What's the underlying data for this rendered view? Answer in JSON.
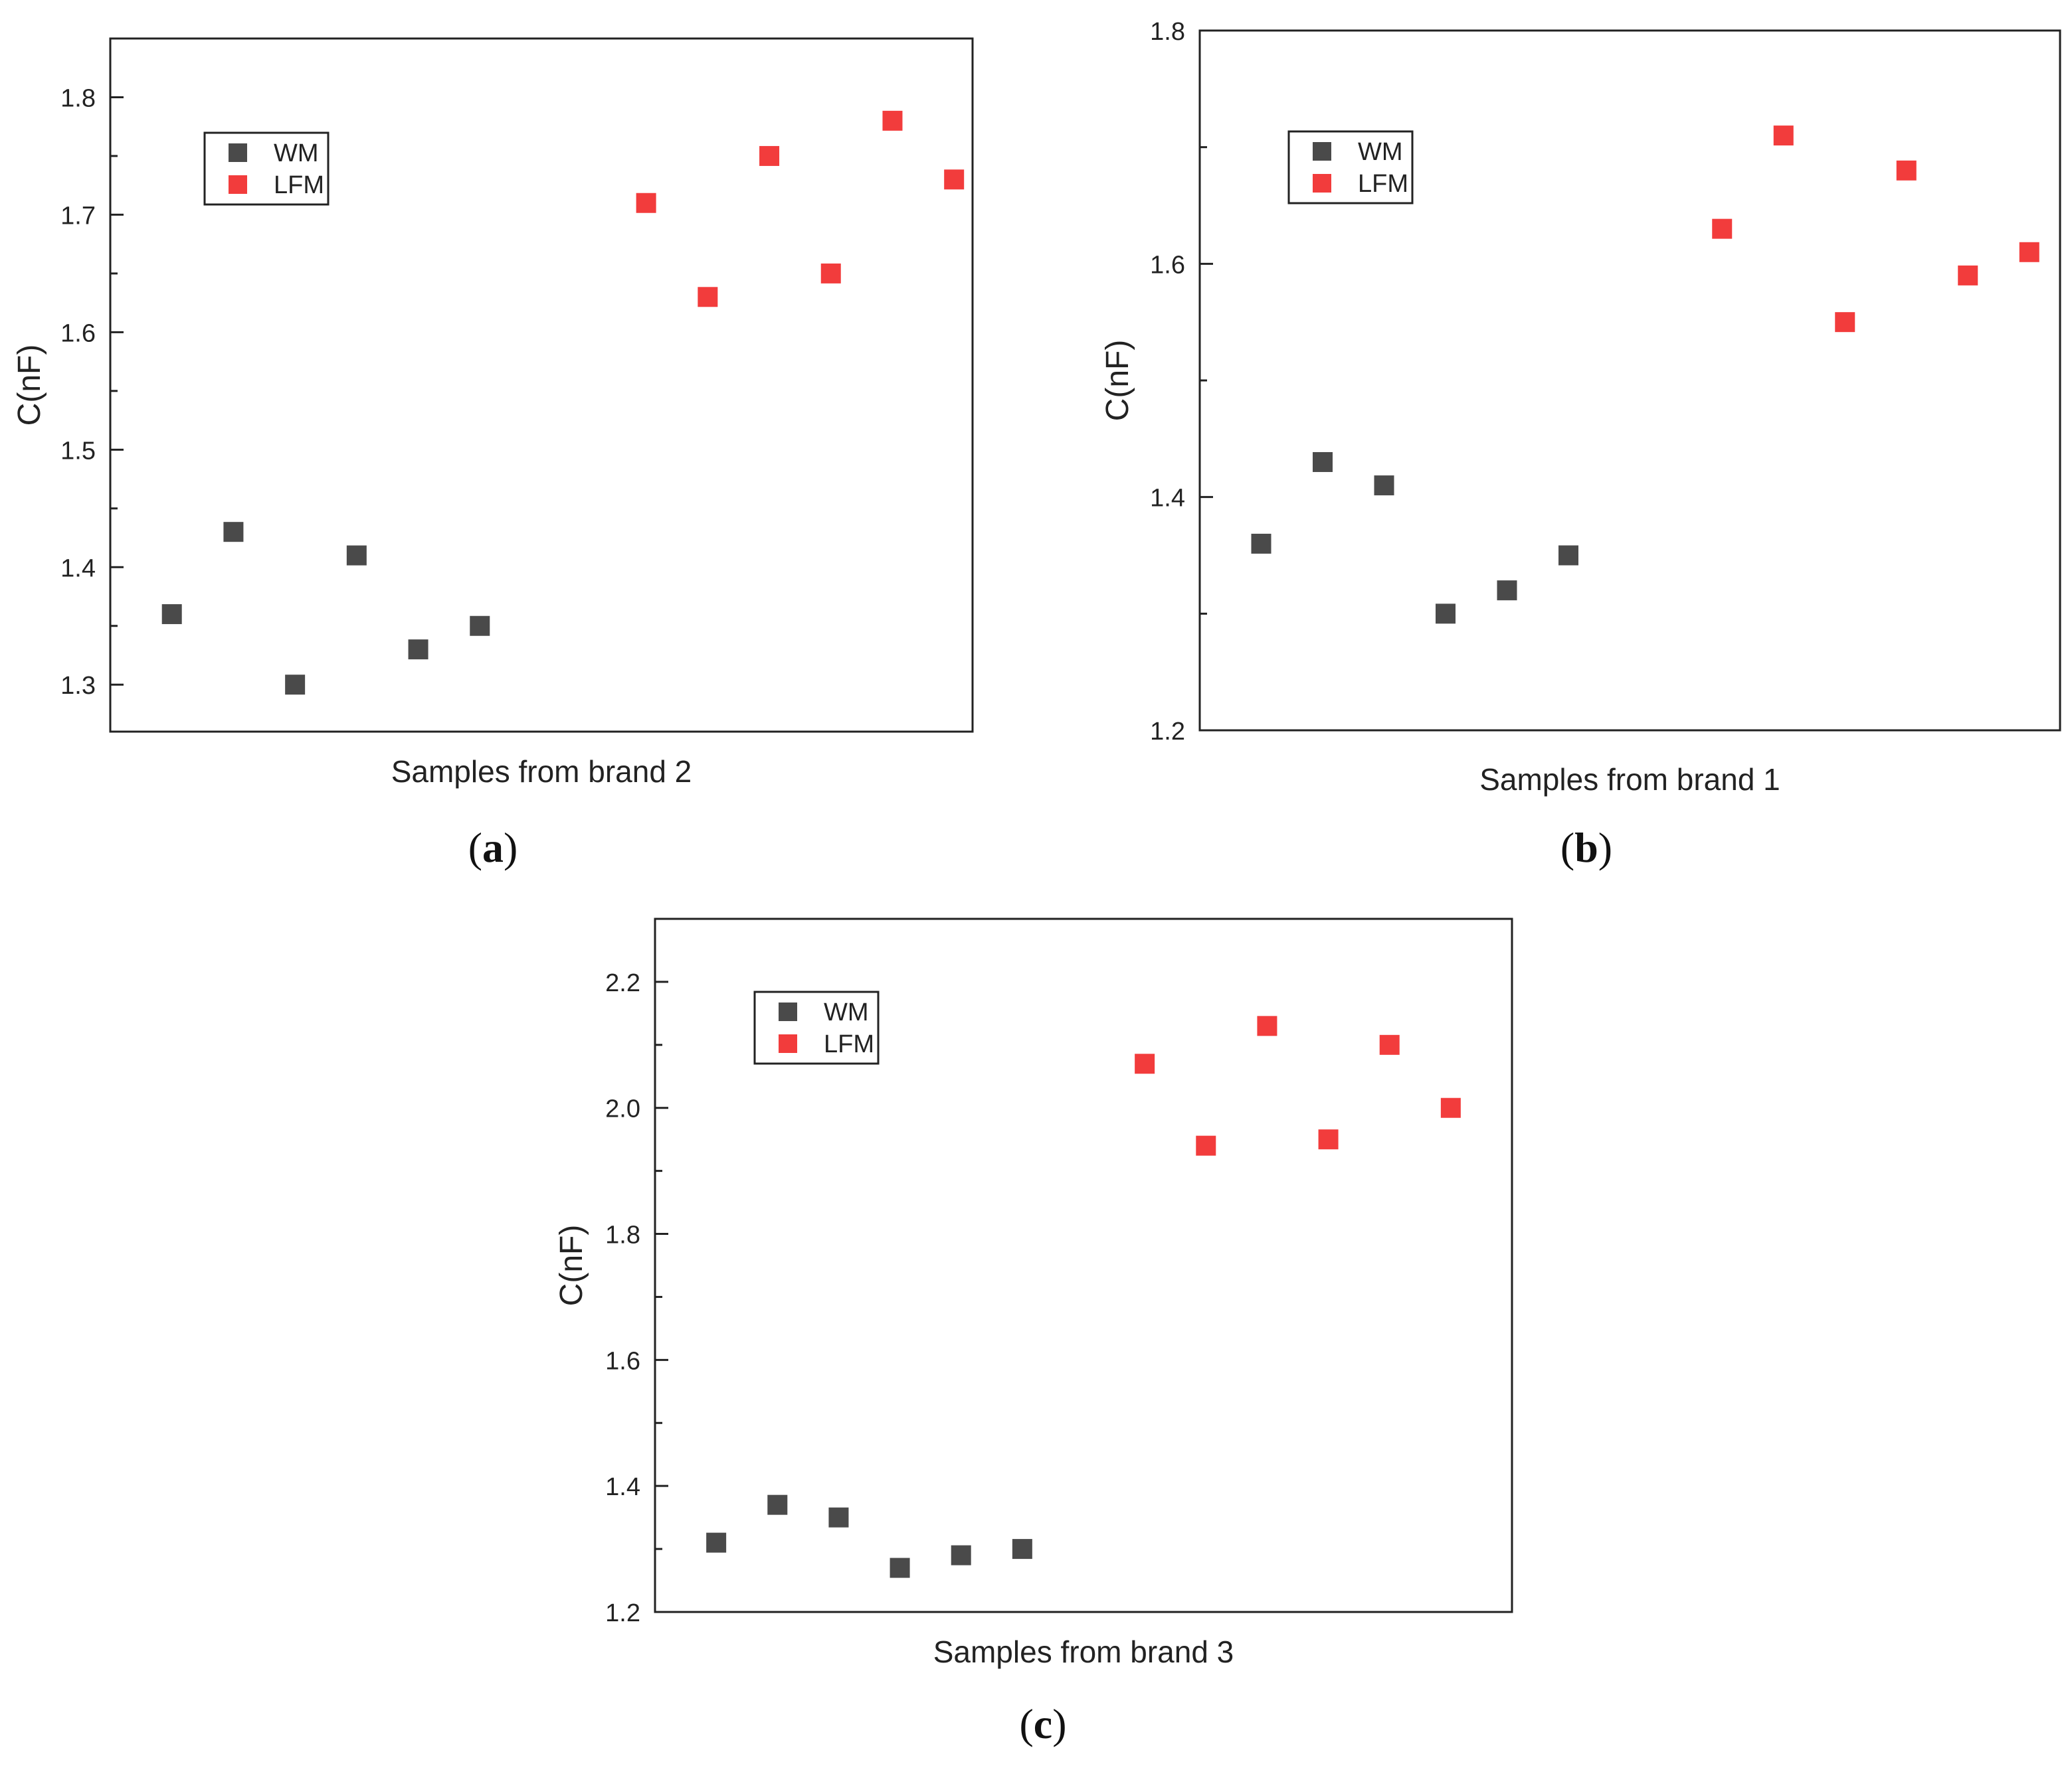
{
  "chart_data": [
    {
      "id": "a",
      "type": "scatter",
      "panel_label_open": "(",
      "panel_label_letter": "a",
      "panel_label_close": ")",
      "xlabel": "Samples from brand 2",
      "ylabel": "C(nF)",
      "ylim": [
        1.26,
        1.85
      ],
      "yticks": [
        1.3,
        1.4,
        1.5,
        1.6,
        1.7,
        1.8
      ],
      "yticklabels": [
        "1.3",
        "1.4",
        "1.5",
        "1.6",
        "1.7",
        "1.8"
      ],
      "xlim": [
        0,
        14
      ],
      "grid": false,
      "legend_position": "top-left",
      "series": [
        {
          "name": "WM",
          "color": "#4a4a4a",
          "x": [
            1,
            2,
            3,
            4,
            5,
            6
          ],
          "y": [
            1.36,
            1.43,
            1.3,
            1.41,
            1.33,
            1.35
          ]
        },
        {
          "name": "LFM",
          "color": "#f23c3c",
          "x": [
            8.7,
            9.7,
            10.7,
            11.7,
            12.7,
            13.7
          ],
          "y": [
            1.71,
            1.63,
            1.75,
            1.65,
            1.78,
            1.73
          ]
        }
      ]
    },
    {
      "id": "b",
      "type": "scatter",
      "panel_label_open": "(",
      "panel_label_letter": "b",
      "panel_label_close": ")",
      "xlabel": "Samples from brand 1",
      "ylabel": "C(nF)",
      "ylim": [
        1.2,
        1.8
      ],
      "yticks": [
        1.2,
        1.4,
        1.6,
        1.8
      ],
      "yticklabels": [
        "1.2",
        "1.4",
        "1.6",
        "1.8"
      ],
      "xlim": [
        0,
        14
      ],
      "grid": false,
      "legend_position": "top-left",
      "series": [
        {
          "name": "WM",
          "color": "#4a4a4a",
          "x": [
            1,
            2,
            3,
            4,
            5,
            6
          ],
          "y": [
            1.36,
            1.43,
            1.41,
            1.3,
            1.32,
            1.35
          ]
        },
        {
          "name": "LFM",
          "color": "#f23c3c",
          "x": [
            8.5,
            9.5,
            10.5,
            11.5,
            12.5,
            13.5
          ],
          "y": [
            1.63,
            1.71,
            1.55,
            1.68,
            1.59,
            1.61
          ]
        }
      ]
    },
    {
      "id": "c",
      "type": "scatter",
      "panel_label_open": "(",
      "panel_label_letter": "c",
      "panel_label_close": ")",
      "xlabel": "Samples from brand 3",
      "ylabel": "C(nF)",
      "ylim": [
        1.2,
        2.3
      ],
      "yticks": [
        1.2,
        1.4,
        1.6,
        1.8,
        2.0,
        2.2
      ],
      "yticklabels": [
        "1.2",
        "1.4",
        "1.6",
        "1.8",
        "2.0",
        "2.2"
      ],
      "xlim": [
        0,
        14
      ],
      "grid": false,
      "legend_position": "top-left",
      "series": [
        {
          "name": "WM",
          "color": "#4a4a4a",
          "x": [
            1,
            2,
            3,
            4,
            5,
            6
          ],
          "y": [
            1.31,
            1.37,
            1.35,
            1.27,
            1.29,
            1.3
          ]
        },
        {
          "name": "LFM",
          "color": "#f23c3c",
          "x": [
            8,
            9,
            10,
            11,
            12,
            13
          ],
          "y": [
            2.07,
            1.94,
            2.13,
            1.95,
            2.1,
            2.0
          ]
        }
      ]
    }
  ]
}
